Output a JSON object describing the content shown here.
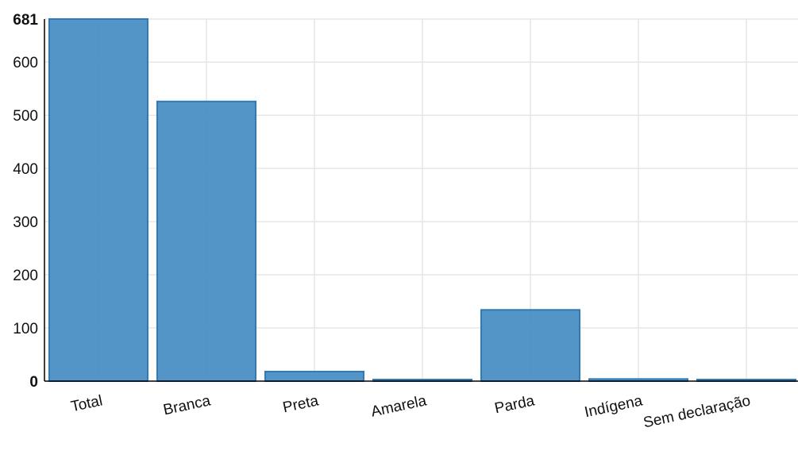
{
  "chart_data": {
    "type": "bar",
    "categories": [
      "Total",
      "Branca",
      "Preta",
      "Amarela",
      "Parda",
      "Indígena",
      "Sem declaração"
    ],
    "values": [
      681,
      526,
      18,
      3,
      134,
      4,
      3
    ],
    "ylim": [
      0,
      681
    ],
    "yticks": [
      0,
      100,
      200,
      300,
      400,
      500,
      600,
      681
    ],
    "max_label": "681",
    "grid": true,
    "legend": "none",
    "colors": {
      "bar_fill": "#4a8fc4",
      "bar_stroke": "#2f7bb8",
      "grid": "#e6e6e6"
    }
  }
}
